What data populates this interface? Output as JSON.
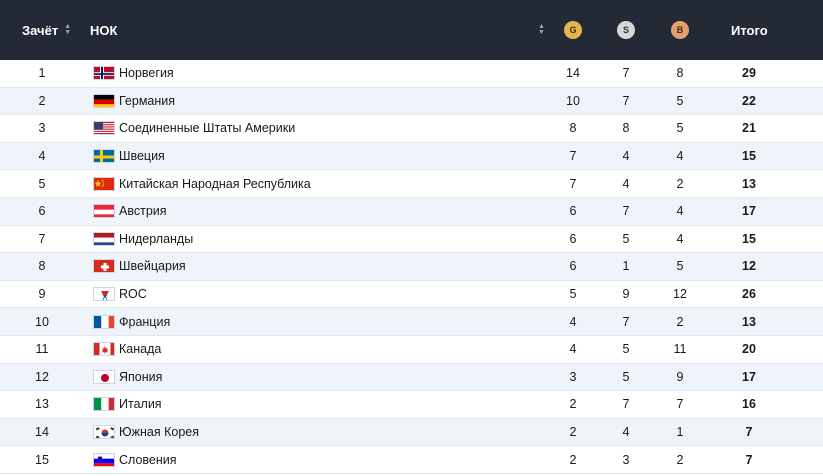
{
  "header": {
    "rank_label": "Зачёт",
    "noc_label": "НОК",
    "gold_label": "G",
    "silver_label": "S",
    "bronze_label": "B",
    "total_label": "Итого"
  },
  "colors": {
    "header_bg": "#232a36",
    "gold": "#e6b64a",
    "silver": "#d7d7d7",
    "bronze": "#e2a16a",
    "row_alt": "#eef4fa"
  },
  "rows": [
    {
      "rank": "1",
      "flag": "norway-flag",
      "name": "Норвегия",
      "g": "14",
      "s": "7",
      "b": "8",
      "total": "29"
    },
    {
      "rank": "2",
      "flag": "germany-flag",
      "name": "Германия",
      "g": "10",
      "s": "7",
      "b": "5",
      "total": "22"
    },
    {
      "rank": "3",
      "flag": "usa-flag",
      "name": "Соединенные Штаты Америки",
      "g": "8",
      "s": "8",
      "b": "5",
      "total": "21"
    },
    {
      "rank": "4",
      "flag": "sweden-flag",
      "name": "Швеция",
      "g": "7",
      "s": "4",
      "b": "4",
      "total": "15"
    },
    {
      "rank": "5",
      "flag": "china-flag",
      "name": "Китайская Народная Республика",
      "g": "7",
      "s": "4",
      "b": "2",
      "total": "13"
    },
    {
      "rank": "6",
      "flag": "austria-flag",
      "name": "Австрия",
      "g": "6",
      "s": "7",
      "b": "4",
      "total": "17"
    },
    {
      "rank": "7",
      "flag": "netherlands-flag",
      "name": "Нидерланды",
      "g": "6",
      "s": "5",
      "b": "4",
      "total": "15"
    },
    {
      "rank": "8",
      "flag": "switzerland-flag",
      "name": "Швейцария",
      "g": "6",
      "s": "1",
      "b": "5",
      "total": "12"
    },
    {
      "rank": "9",
      "flag": "roc-flag",
      "name": "ROC",
      "g": "5",
      "s": "9",
      "b": "12",
      "total": "26"
    },
    {
      "rank": "10",
      "flag": "france-flag",
      "name": "Франция",
      "g": "4",
      "s": "7",
      "b": "2",
      "total": "13"
    },
    {
      "rank": "11",
      "flag": "canada-flag",
      "name": "Канада",
      "g": "4",
      "s": "5",
      "b": "11",
      "total": "20"
    },
    {
      "rank": "12",
      "flag": "japan-flag",
      "name": "Япония",
      "g": "3",
      "s": "5",
      "b": "9",
      "total": "17"
    },
    {
      "rank": "13",
      "flag": "italy-flag",
      "name": "Италия",
      "g": "2",
      "s": "7",
      "b": "7",
      "total": "16"
    },
    {
      "rank": "14",
      "flag": "south-korea-flag",
      "name": "Южная Корея",
      "g": "2",
      "s": "4",
      "b": "1",
      "total": "7"
    },
    {
      "rank": "15",
      "flag": "slovenia-flag",
      "name": "Словения",
      "g": "2",
      "s": "3",
      "b": "2",
      "total": "7"
    }
  ]
}
